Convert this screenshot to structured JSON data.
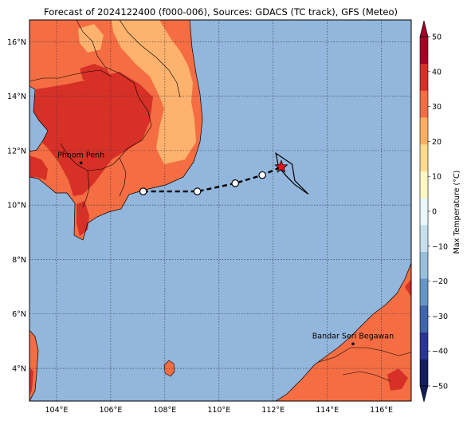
{
  "title": "Forecast of 2024122400 (f000-006), Sources: GDACS (TC track), GFS (Meteo)",
  "map": {
    "lon_range": [
      103,
      117.1
    ],
    "lat_range": [
      2.8,
      16.8
    ],
    "lon_ticks": [
      104,
      106,
      108,
      110,
      112,
      114,
      116
    ],
    "lon_tick_labels": [
      "104°E",
      "106°E",
      "108°E",
      "110°E",
      "112°E",
      "114°E",
      "116°E"
    ],
    "lat_ticks": [
      4,
      6,
      8,
      10,
      12,
      14,
      16
    ],
    "lat_tick_labels": [
      "4°N",
      "6°N",
      "8°N",
      "10°N",
      "12°N",
      "14°N",
      "16°N"
    ],
    "grid": true,
    "ocean_color": "#92b6dc"
  },
  "cities": [
    {
      "name": "Phnom Penh",
      "lon": 104.9,
      "lat": 11.55
    },
    {
      "name": "Bandar Seri Begawan",
      "lon": 114.95,
      "lat": 4.9
    }
  ],
  "tc_track": {
    "points": [
      {
        "lon": 107.2,
        "lat": 10.5
      },
      {
        "lon": 109.2,
        "lat": 10.5
      },
      {
        "lon": 110.6,
        "lat": 10.8
      },
      {
        "lon": 111.6,
        "lat": 11.1
      },
      {
        "lon": 112.3,
        "lat": 11.4
      }
    ],
    "current_position": {
      "lon": 112.3,
      "lat": 11.4
    },
    "cone": [
      {
        "lon": 112.1,
        "lat": 11.9
      },
      {
        "lon": 112.7,
        "lat": 11.5
      },
      {
        "lon": 112.8,
        "lat": 10.9
      },
      {
        "lon": 113.3,
        "lat": 10.4
      },
      {
        "lon": 112.8,
        "lat": 10.75
      },
      {
        "lon": 112.5,
        "lat": 11.05
      },
      {
        "lon": 112.2,
        "lat": 11.4
      }
    ]
  },
  "colorbar": {
    "label": "Max Temperature (°C)",
    "min": -50,
    "max": 50,
    "ticks": [
      50,
      40,
      30,
      20,
      10,
      0,
      -10,
      -20,
      -30,
      -40,
      -50
    ],
    "tick_labels": [
      "50",
      "40",
      "30",
      "20",
      "10",
      "0",
      "−10",
      "−20",
      "−30",
      "−40",
      "−50"
    ],
    "colors": [
      "#131d5e",
      "#2a3594",
      "#3f66ad",
      "#6596c5",
      "#98bfdc",
      "#c5e0ed",
      "#eaf6f9",
      "#fdf7c4",
      "#fedb8c",
      "#fdae60",
      "#f46d43",
      "#d73027",
      "#a50026"
    ]
  },
  "land_colors": {
    "hot": "#d73027",
    "warm": "#f46d43",
    "mild": "#fdb26e"
  }
}
